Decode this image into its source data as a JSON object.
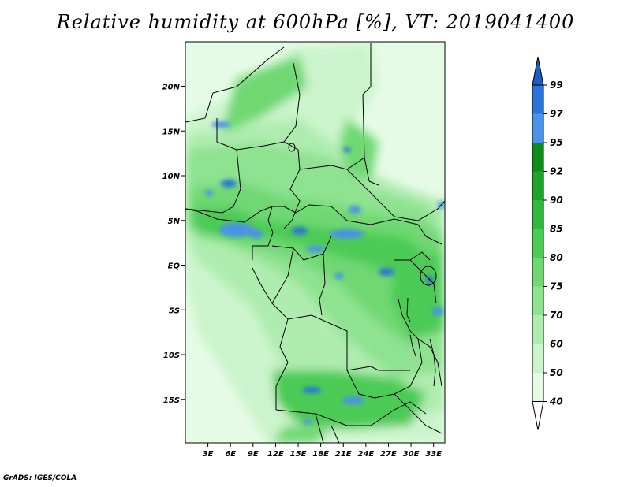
{
  "title": "Relative humidity at 600hPa [%], VT: 2019041400",
  "credit": "GrADS: IGES/COLA",
  "map": {
    "lon_range": [
      0,
      34.5
    ],
    "lat_range": [
      -20,
      25
    ],
    "lon_ticks": [
      "3E",
      "6E",
      "9E",
      "12E",
      "15E",
      "18E",
      "21E",
      "24E",
      "27E",
      "30E",
      "33E"
    ],
    "lat_ticks": [
      "20N",
      "15N",
      "10N",
      "5N",
      "EQ",
      "5S",
      "10S",
      "15S"
    ]
  },
  "colorbar": {
    "levels": [
      "99",
      "97",
      "95",
      "92",
      "90",
      "85",
      "80",
      "75",
      "70",
      "60",
      "50",
      "40"
    ],
    "colors": {
      "above_99": "#1a5fc4",
      "97_99": "#2a74d8",
      "95_97": "#4a93e6",
      "92_95": "#0f8c1c",
      "90_92": "#1ea42b",
      "85_90": "#33b83f",
      "80_85": "#4ccb55",
      "75_80": "#6fd873",
      "70_75": "#8ee290",
      "60_70": "#aeecaf",
      "50_60": "#ccf4cc",
      "40_50": "#e6fbe6",
      "below_40": "#ffffff"
    }
  }
}
